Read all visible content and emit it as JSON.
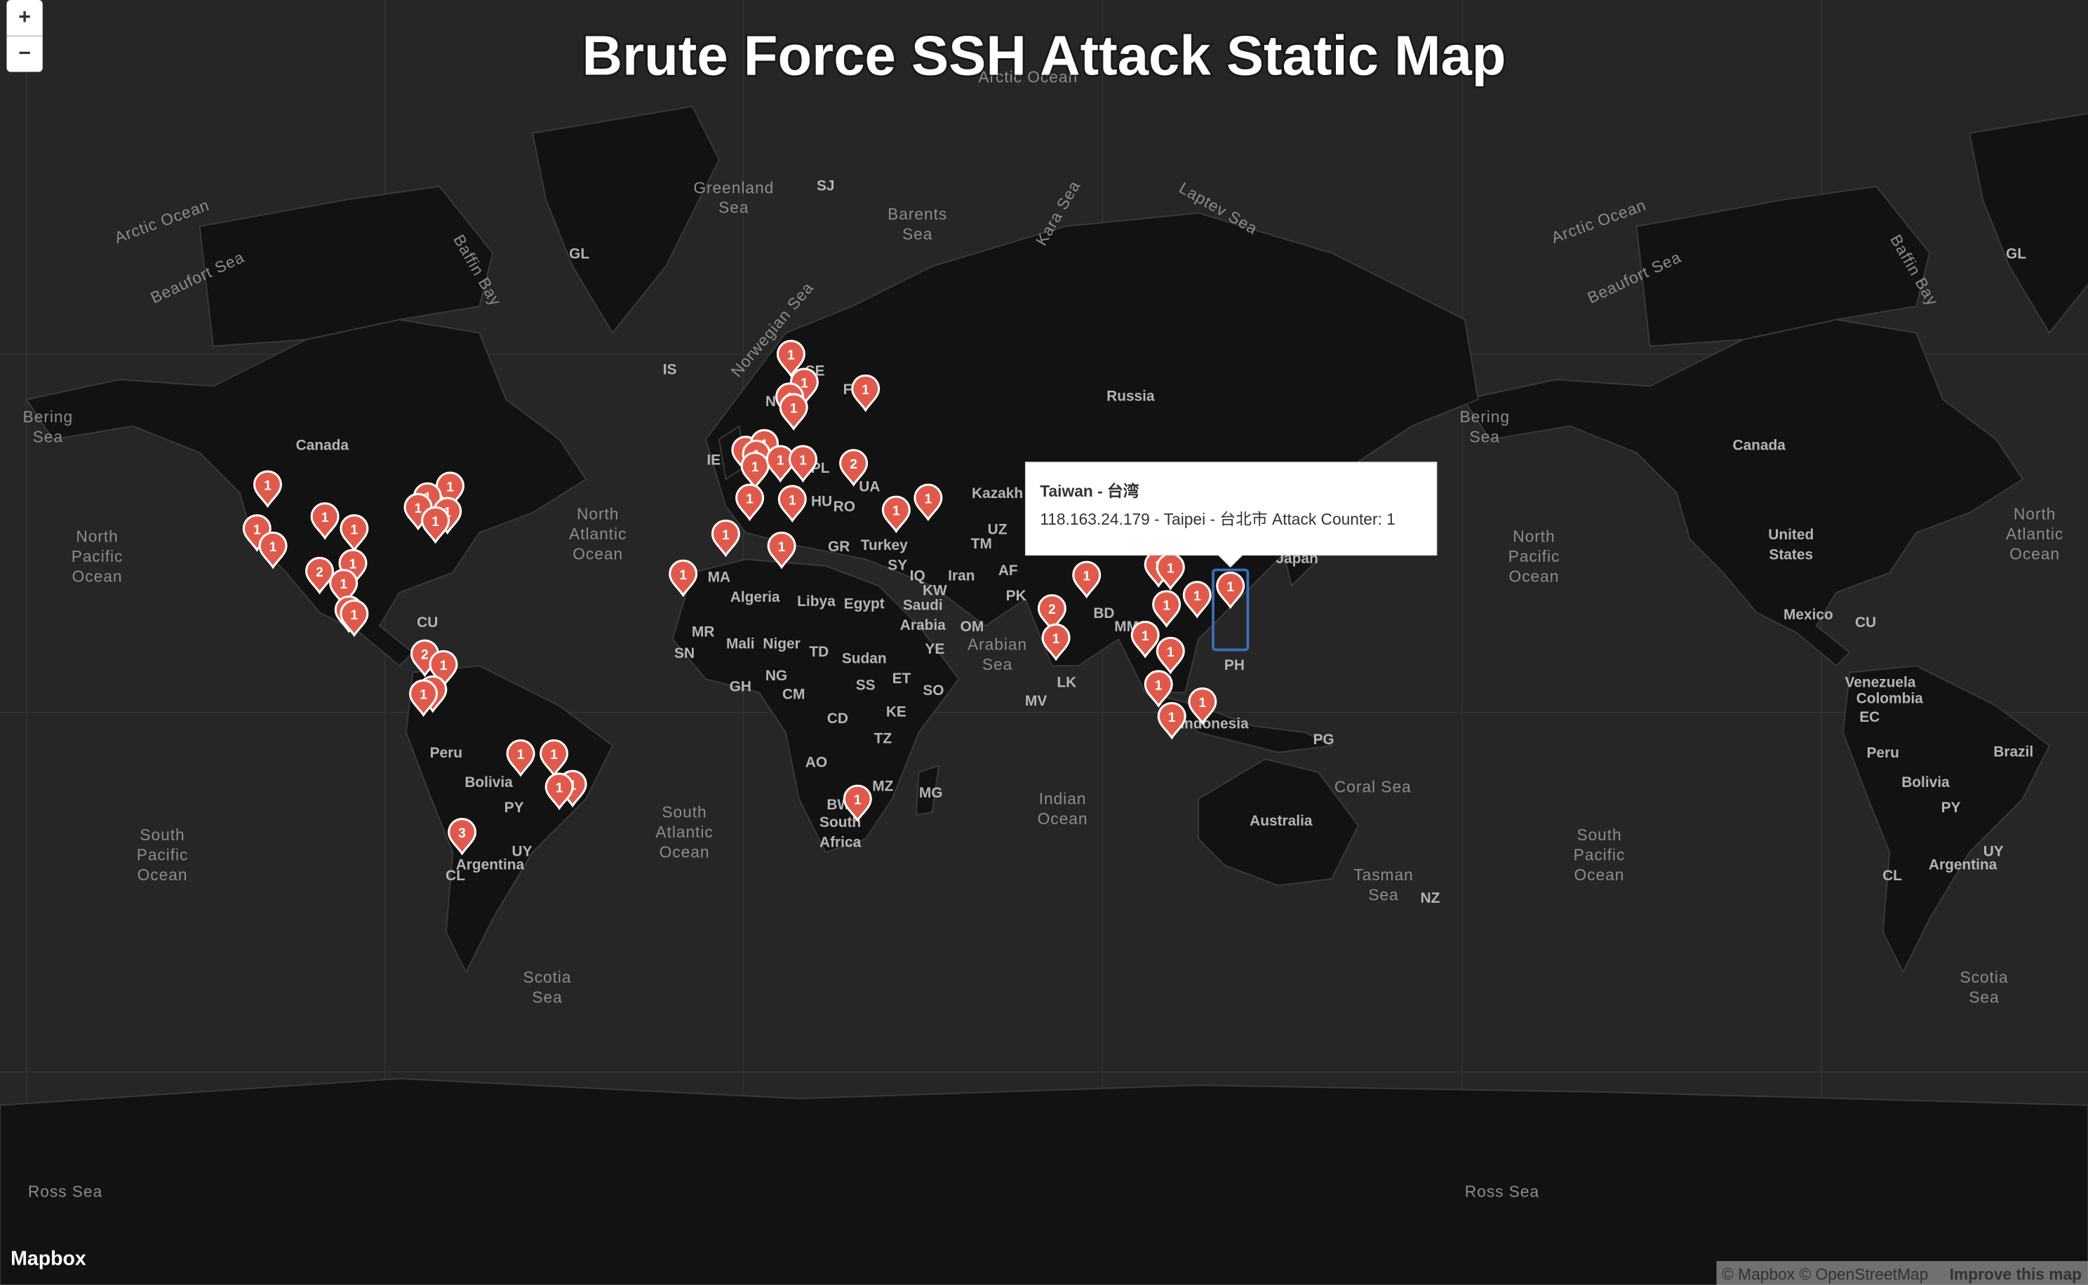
{
  "title": "Brute Force SSH Attack Static Map",
  "zoom_controls": [
    "+",
    "−"
  ],
  "map_labels": [
    "Arctic Ocean",
    "Arctic Ocean",
    "Arctic Ocean",
    "Beaufort Sea",
    "Beaufort Sea",
    "Baffin Bay",
    "Baffin Bay",
    "GL",
    "GL",
    "Greenland Sea",
    "SJ",
    "Barents Sea",
    "Kara Sea",
    "Laptev Sea",
    "Norwegian Sea",
    "IS",
    "Russia",
    "Bering Sea",
    "Bering Sea",
    "Canada",
    "Canada",
    "North Pacific Ocean",
    "North Pacific Ocean",
    "North Atlantic Ocean",
    "North Atlantic Ocean",
    "United States",
    "Mexico",
    "CU",
    "CU",
    "Venezuela",
    "Colombia",
    "EC",
    "Peru",
    "Peru",
    "Brazil",
    "Bolivia",
    "Bolivia",
    "PY",
    "PY",
    "UY",
    "UY",
    "Argentina",
    "Argentina",
    "CL",
    "CL",
    "South Pacific Ocean",
    "South Pacific Ocean",
    "South Atlantic Ocean",
    "Scotia Sea",
    "Scotia Sea",
    "Ross Sea",
    "Ross Sea",
    "Indian Ocean",
    "Australia",
    "Coral Sea",
    "Tasman Sea",
    "NZ",
    "PG",
    "Indonesia",
    "PH",
    "LK",
    "MV",
    "Arabian Sea",
    "Japan",
    "Kazakh",
    "UZ",
    "TM",
    "AF",
    "PK",
    "Iran",
    "Turkey",
    "GR",
    "SY",
    "IQ",
    "KW",
    "Saudi Arabia",
    "OM",
    "YE",
    "Egypt",
    "Libya",
    "Algeria",
    "MA",
    "MR",
    "Mali",
    "Niger",
    "TD",
    "Sudan",
    "SN",
    "GH",
    "NG",
    "CM",
    "ET",
    "SS",
    "SO",
    "KE",
    "CD",
    "TZ",
    "AO",
    "MZ",
    "MG",
    "BW",
    "South Africa",
    "UA",
    "RO",
    "HU",
    "PL",
    "SE",
    "FI",
    "NO",
    "IE",
    "BD",
    "MM"
  ],
  "markers": [
    {
      "count": 1
    },
    {
      "count": 1
    },
    {
      "count": 1
    },
    {
      "count": 1
    },
    {
      "count": 1
    },
    {
      "count": 2
    },
    {
      "count": 1
    },
    {
      "count": 1
    },
    {
      "count": 1
    },
    {
      "count": 1
    },
    {
      "count": 1
    },
    {
      "count": 1
    },
    {
      "count": 1
    },
    {
      "count": 1
    },
    {
      "count": 1
    },
    {
      "count": 2
    },
    {
      "count": 1
    },
    {
      "count": 1
    },
    {
      "count": 1
    },
    {
      "count": 1
    },
    {
      "count": 1
    },
    {
      "count": 1
    },
    {
      "count": 1
    },
    {
      "count": 3
    },
    {
      "count": 1
    },
    {
      "count": 1
    },
    {
      "count": 1
    },
    {
      "count": 1
    },
    {
      "count": 1
    },
    {
      "count": 1
    },
    {
      "count": 1
    },
    {
      "count": 1
    },
    {
      "count": 1
    },
    {
      "count": 1
    },
    {
      "count": 1
    },
    {
      "count": 2
    },
    {
      "count": 1
    },
    {
      "count": 1
    },
    {
      "count": 1
    },
    {
      "count": 1
    },
    {
      "count": 1
    },
    {
      "count": 1
    },
    {
      "count": 1
    },
    {
      "count": 1
    },
    {
      "count": 1
    },
    {
      "count": 2
    },
    {
      "count": 1
    },
    {
      "count": 1
    },
    {
      "count": 1
    },
    {
      "count": 1
    },
    {
      "count": 1
    },
    {
      "count": 1
    },
    {
      "count": 1
    },
    {
      "count": 1
    },
    {
      "count": 1
    },
    {
      "count": 1
    },
    {
      "count": 1
    }
  ],
  "popup": {
    "title": "Taiwan - 台湾",
    "body": "118.163.24.179 - Taipei - 台北市 Attack Counter: 1"
  },
  "logo": "Mapbox",
  "attribution": {
    "text": "© Mapbox © OpenStreetMap",
    "link": "Improve this map"
  }
}
